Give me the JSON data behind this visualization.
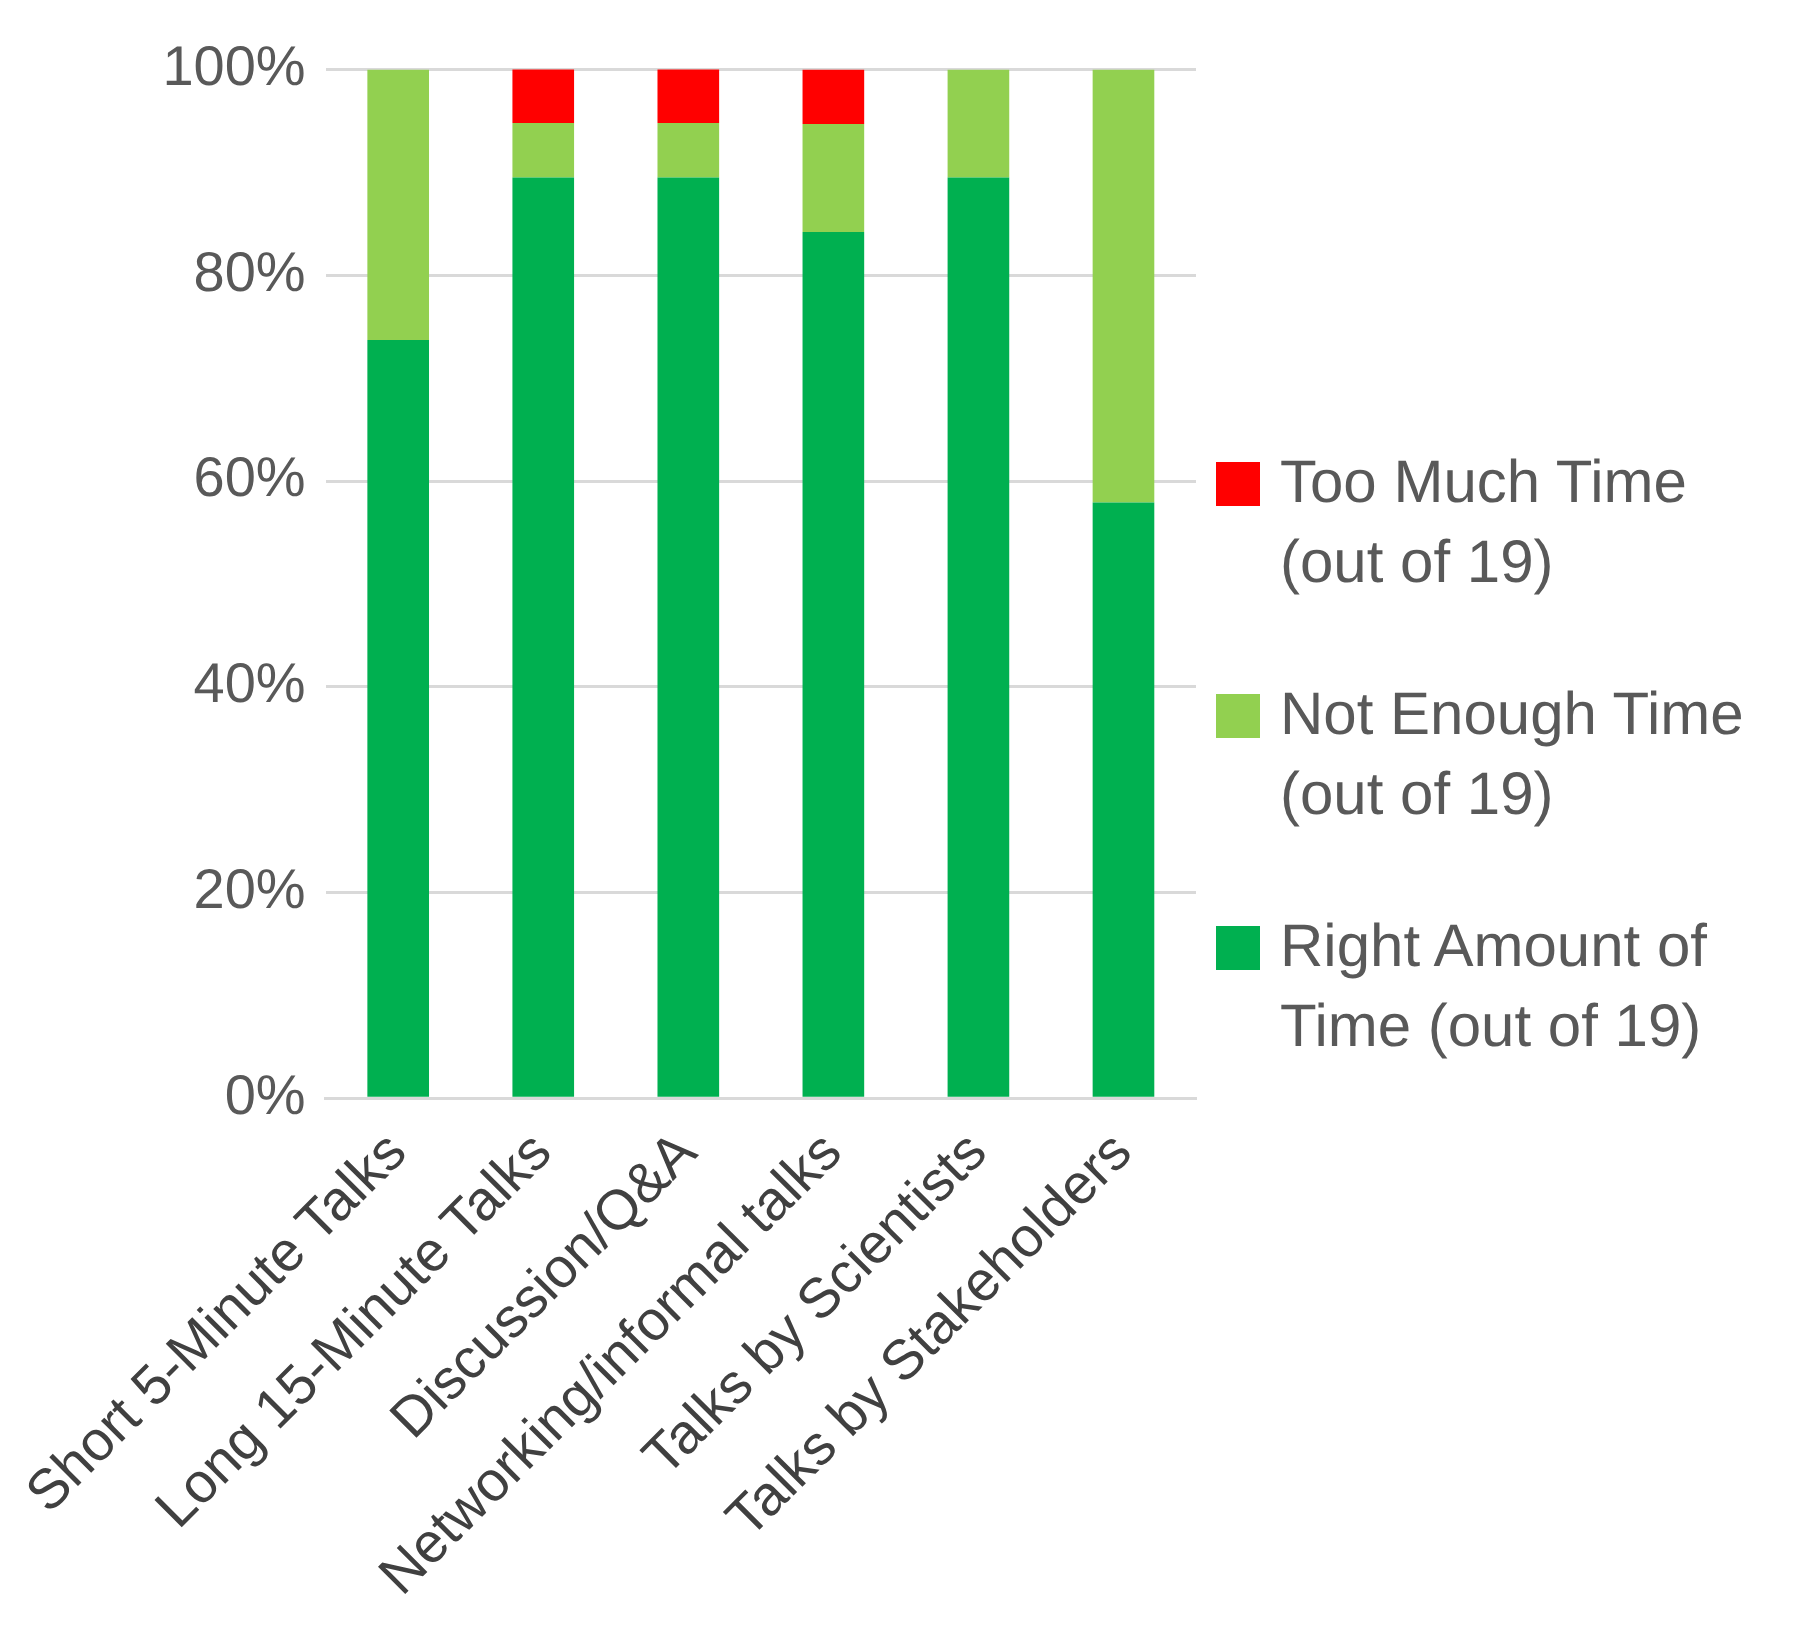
{
  "chart_data": {
    "type": "bar",
    "stacked": true,
    "categories": [
      "Short 5-Minute Talks",
      "Long 15-Minute Talks",
      "Discussion/Q&A",
      "Networking/informal talks",
      "Talks by Scientists",
      "Talks by Stakeholders"
    ],
    "series": [
      {
        "name": "Right Amount of Time (out of 19)",
        "color": "#00b050",
        "values": [
          73.7,
          89.5,
          89.5,
          84.2,
          89.5,
          57.9
        ]
      },
      {
        "name": "Not Enough Time (out of 19)",
        "color": "#92d050",
        "values": [
          26.3,
          5.3,
          5.3,
          10.5,
          10.5,
          42.1
        ]
      },
      {
        "name": "Too Much Time (out of 19)",
        "color": "#ff0000",
        "values": [
          0,
          5.3,
          5.3,
          5.3,
          0,
          0
        ]
      }
    ],
    "ylim": [
      0,
      100
    ],
    "yticks": [
      {
        "value": 0,
        "label": "0%"
      },
      {
        "value": 20,
        "label": "20%"
      },
      {
        "value": 40,
        "label": "40%"
      },
      {
        "value": 60,
        "label": "60%"
      },
      {
        "value": 80,
        "label": "80%"
      },
      {
        "value": 100,
        "label": "100%"
      }
    ],
    "grid": "y",
    "legend": "right"
  }
}
